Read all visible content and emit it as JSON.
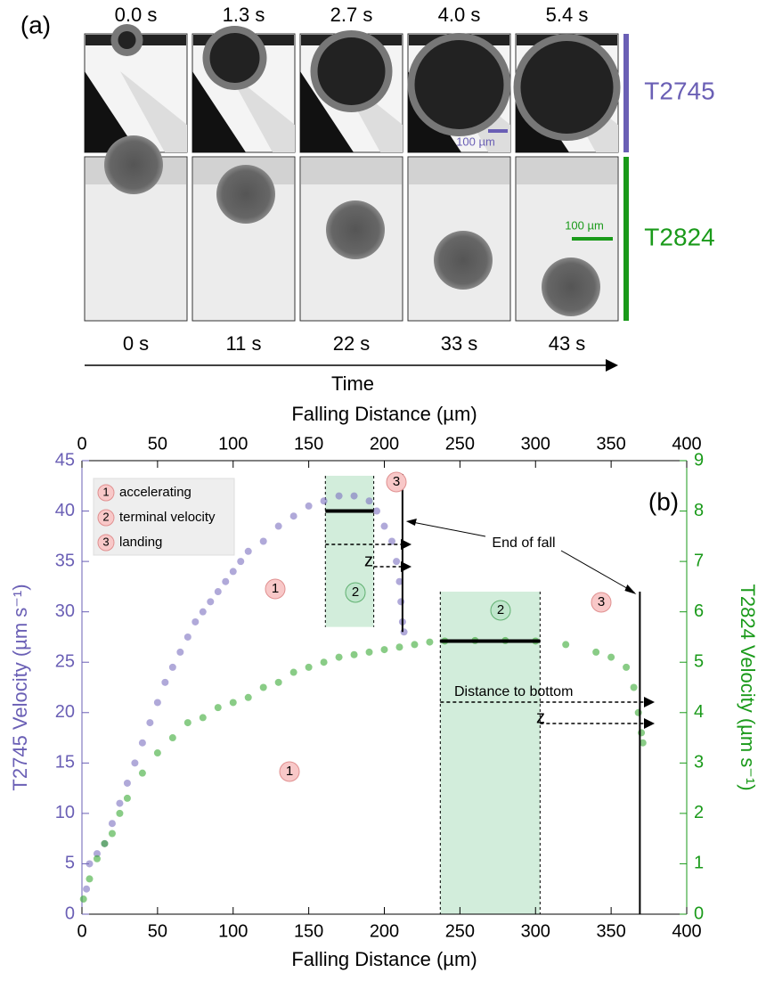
{
  "panel_a": {
    "label": "(a)",
    "top_times": [
      "0.0 s",
      "1.3 s",
      "2.7 s",
      "4.0 s",
      "5.4 s"
    ],
    "bottom_times": [
      "0 s",
      "11 s",
      "22 s",
      "33 s",
      "43 s"
    ],
    "axis_label": "Time",
    "rows": [
      "T2745",
      "T2824"
    ],
    "scale_bars": [
      "100 µm",
      "100 µm"
    ]
  },
  "chart_data": {
    "type": "scatter",
    "panel_label": "(b)",
    "x_label": "Falling Distance (µm)",
    "x_label_top": "Falling Distance (µm)",
    "y_label": "T2745 Velocity (µm s⁻¹)",
    "y2_label": "T2824 Velocity (µm s⁻¹)",
    "xlim": [
      0,
      400
    ],
    "xticks": [
      0,
      50,
      100,
      150,
      200,
      250,
      300,
      350,
      400
    ],
    "ylim": [
      0,
      45
    ],
    "yticks": [
      0,
      5,
      10,
      15,
      20,
      25,
      30,
      35,
      40,
      45
    ],
    "y2lim": [
      0,
      9
    ],
    "y2ticks": [
      0,
      1,
      2,
      3,
      4,
      5,
      6,
      7,
      8,
      9
    ],
    "series": [
      {
        "name": "T2745",
        "color": "#7b6fc0",
        "axis": "y",
        "x": [
          3,
          5,
          10,
          15,
          20,
          25,
          30,
          35,
          40,
          45,
          50,
          55,
          60,
          65,
          70,
          75,
          80,
          85,
          90,
          95,
          100,
          105,
          110,
          120,
          130,
          140,
          150,
          160,
          170,
          180,
          190,
          195,
          200,
          205,
          208,
          210,
          211,
          212,
          213
        ],
        "values": [
          2.5,
          5,
          6,
          7,
          9,
          11,
          13,
          15,
          17,
          19,
          21,
          23,
          24.5,
          26,
          27.5,
          29,
          30,
          31,
          32,
          33,
          34,
          35,
          36,
          37,
          38.5,
          39.5,
          40.5,
          41,
          41.5,
          41.5,
          41,
          40,
          38.5,
          37,
          35,
          33,
          31,
          29,
          28
        ]
      },
      {
        "name": "T2824",
        "color": "#3aaa35",
        "axis": "y2",
        "x": [
          1,
          5,
          10,
          15,
          20,
          25,
          30,
          40,
          50,
          60,
          70,
          80,
          90,
          100,
          110,
          120,
          130,
          140,
          150,
          160,
          170,
          180,
          190,
          200,
          210,
          220,
          230,
          240,
          260,
          280,
          300,
          320,
          340,
          350,
          360,
          365,
          368,
          370,
          371
        ],
        "values": [
          0.3,
          0.7,
          1.1,
          1.4,
          1.6,
          2.0,
          2.3,
          2.8,
          3.2,
          3.5,
          3.8,
          3.9,
          4.1,
          4.2,
          4.3,
          4.5,
          4.6,
          4.8,
          4.9,
          5.0,
          5.1,
          5.15,
          5.2,
          5.25,
          5.3,
          5.35,
          5.4,
          5.42,
          5.43,
          5.43,
          5.42,
          5.35,
          5.2,
          5.1,
          4.9,
          4.5,
          4.0,
          3.6,
          3.4
        ]
      }
    ],
    "terminal_regions": [
      [
        161,
        193
      ],
      [
        237,
        303
      ]
    ],
    "terminal_velocities": [
      {
        "value": 40,
        "axis": "y",
        "x": [
          161,
          193
        ]
      },
      {
        "value": 5.42,
        "axis": "y2",
        "x": [
          237,
          303
        ]
      }
    ],
    "end_of_fall": [
      212,
      369
    ],
    "legend": [
      {
        "num": "1",
        "text": "accelerating"
      },
      {
        "num": "2",
        "text": "terminal velocity"
      },
      {
        "num": "3",
        "text": "landing"
      }
    ],
    "stage_markers": [
      "3",
      "1",
      "2",
      "1",
      "2",
      "3"
    ],
    "annotations": {
      "end_of_fall": "End of fall",
      "distance": "Distance to bottom",
      "z": [
        "z",
        "z"
      ]
    }
  }
}
